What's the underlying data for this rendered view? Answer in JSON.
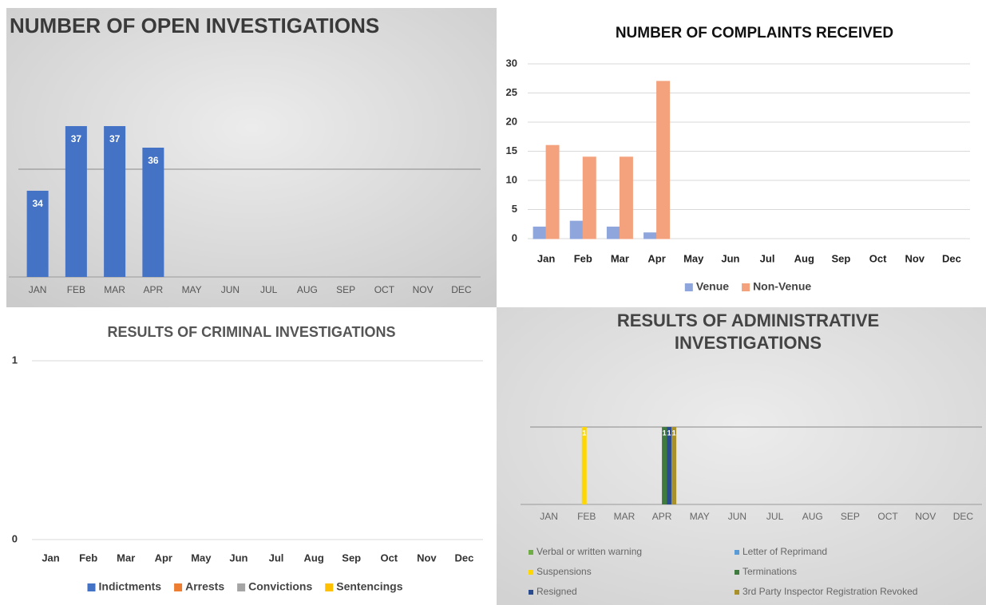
{
  "chart_data": [
    {
      "type": "bar",
      "title": "NUMBER OF OPEN INVESTIGATIONS",
      "categories": [
        "JAN",
        "FEB",
        "MAR",
        "APR",
        "MAY",
        "JUN",
        "JUL",
        "AUG",
        "SEP",
        "OCT",
        "NOV",
        "DEC"
      ],
      "values": [
        34,
        37,
        37,
        36,
        null,
        null,
        null,
        null,
        null,
        null,
        null,
        null
      ],
      "color": "#4472c4",
      "ylim": [
        30,
        40
      ],
      "yticks": [
        35
      ],
      "ytick_labels": false,
      "grid": true,
      "data_labels": true
    },
    {
      "type": "bar",
      "title": "NUMBER OF COMPLAINTS RECEIVED",
      "categories": [
        "Jan",
        "Feb",
        "Mar",
        "Apr",
        "May",
        "Jun",
        "Jul",
        "Aug",
        "Sep",
        "Oct",
        "Nov",
        "Dec"
      ],
      "series": [
        {
          "name": "Venue",
          "color": "#8fa6dc",
          "values": [
            2,
            3,
            2,
            1,
            null,
            null,
            null,
            null,
            null,
            null,
            null,
            null
          ]
        },
        {
          "name": "Non-Venue",
          "color": "#f4a27e",
          "values": [
            16,
            14,
            14,
            27,
            null,
            null,
            null,
            null,
            null,
            null,
            null,
            null
          ]
        }
      ],
      "ylim": [
        0,
        30
      ],
      "yticks": [
        0,
        5,
        10,
        15,
        20,
        25,
        30
      ],
      "ytick_labels": true,
      "grid": true,
      "legend": "bottom"
    },
    {
      "type": "bar",
      "title": "RESULTS OF CRIMINAL INVESTIGATIONS",
      "categories": [
        "Jan",
        "Feb",
        "Mar",
        "Apr",
        "May",
        "Jun",
        "Jul",
        "Aug",
        "Sep",
        "Oct",
        "Nov",
        "Dec"
      ],
      "series": [
        {
          "name": "Indictments",
          "color": "#4472c4",
          "values": [
            0,
            0,
            0,
            0,
            null,
            null,
            null,
            null,
            null,
            null,
            null,
            null
          ]
        },
        {
          "name": "Arrests",
          "color": "#ed7d31",
          "values": [
            0,
            0,
            0,
            0,
            null,
            null,
            null,
            null,
            null,
            null,
            null,
            null
          ]
        },
        {
          "name": "Convictions",
          "color": "#a5a5a5",
          "values": [
            0,
            0,
            0,
            0,
            null,
            null,
            null,
            null,
            null,
            null,
            null,
            null
          ]
        },
        {
          "name": "Sentencings",
          "color": "#ffc000",
          "values": [
            0,
            0,
            0,
            0,
            null,
            null,
            null,
            null,
            null,
            null,
            null,
            null
          ]
        }
      ],
      "ylim": [
        0,
        1
      ],
      "yticks": [
        0,
        1
      ],
      "ytick_labels": true,
      "grid": true,
      "legend": "bottom"
    },
    {
      "type": "bar",
      "title": "RESULTS OF ADMINISTRATIVE INVESTIGATIONS",
      "categories": [
        "JAN",
        "FEB",
        "MAR",
        "APR",
        "MAY",
        "JUN",
        "JUL",
        "AUG",
        "SEP",
        "OCT",
        "NOV",
        "DEC"
      ],
      "series": [
        {
          "name": "Verbal or written warning",
          "color": "#70ad47",
          "values": [
            null,
            null,
            null,
            null,
            null,
            null,
            null,
            null,
            null,
            null,
            null,
            null
          ]
        },
        {
          "name": "Letter of Reprimand",
          "color": "#5b9bd5",
          "values": [
            null,
            null,
            null,
            null,
            null,
            null,
            null,
            null,
            null,
            null,
            null,
            null
          ]
        },
        {
          "name": "Suspensions",
          "color": "#ffd700",
          "values": [
            null,
            1,
            null,
            null,
            null,
            null,
            null,
            null,
            null,
            null,
            null,
            null
          ]
        },
        {
          "name": "Terminations",
          "color": "#3f7a3f",
          "values": [
            null,
            null,
            null,
            1,
            null,
            null,
            null,
            null,
            null,
            null,
            null,
            null
          ]
        },
        {
          "name": "Resigned",
          "color": "#2a4b8d",
          "values": [
            null,
            null,
            null,
            1,
            null,
            null,
            null,
            null,
            null,
            null,
            null,
            null
          ]
        },
        {
          "name": "3rd Party Inspector Registration Revoked",
          "color": "#a8902a",
          "values": [
            null,
            null,
            null,
            1,
            null,
            null,
            null,
            null,
            null,
            null,
            null,
            null
          ]
        }
      ],
      "ylim": [
        0,
        2
      ],
      "yticks": [
        1
      ],
      "ytick_labels": false,
      "grid": true,
      "data_labels": true,
      "legend": "bottom"
    }
  ]
}
